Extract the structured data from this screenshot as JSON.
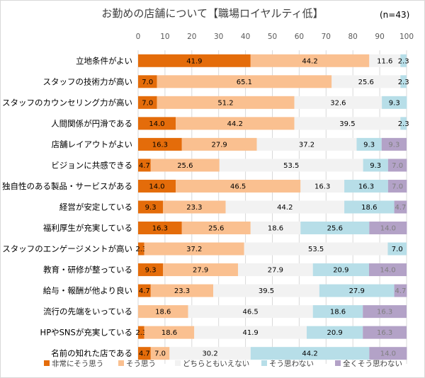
{
  "chart_data": {
    "type": "bar",
    "orientation": "horizontal",
    "stacked": true,
    "title": "お勤めの店舗について【職場ロイヤルティ低】",
    "note": "(n=43)",
    "xlim": [
      0,
      100
    ],
    "xticks": [
      0,
      10,
      20,
      30,
      40,
      50,
      60,
      70,
      80,
      90,
      100
    ],
    "grid": true,
    "legend_position": "bottom",
    "categories": [
      "立地条件がよい",
      "スタッフの技術力が高い",
      "スタッフのカウンセリング力が高い",
      "人間関係が円滑である",
      "店舗レイアウトがよい",
      "ビジョンに共感できる",
      "独自性のある製品・サービスがある",
      "経営が安定している",
      "福利厚生が充実している",
      "スタッフのエンゲージメントが高い",
      "教育・研修が整っている",
      "給与・報酬が他より良い",
      "流行の先端をいっている",
      "HPやSNSが充実している",
      "名前の知れた店である"
    ],
    "series": [
      {
        "name": "非常にそう思う",
        "color": "#e46c0a",
        "text_color": "#000000",
        "values": [
          41.9,
          7.0,
          7.0,
          14.0,
          16.3,
          4.7,
          14.0,
          9.3,
          16.3,
          2.3,
          9.3,
          4.7,
          0,
          2.3,
          4.7
        ]
      },
      {
        "name": "そう思う",
        "color": "#fac090",
        "text_color": "#000000",
        "values": [
          44.2,
          65.1,
          51.2,
          44.2,
          27.9,
          25.6,
          46.5,
          23.3,
          25.6,
          37.2,
          27.9,
          23.3,
          18.6,
          18.6,
          7.0
        ]
      },
      {
        "name": "どちらともいえない",
        "color": "#f2f2f2",
        "text_color": "#000000",
        "values": [
          11.6,
          25.6,
          32.6,
          39.5,
          37.2,
          53.5,
          16.3,
          44.2,
          18.6,
          53.5,
          27.9,
          39.5,
          46.5,
          41.9,
          30.2
        ]
      },
      {
        "name": "そう思わない",
        "color": "#b7dee8",
        "text_color": "#000000",
        "values": [
          2.3,
          2.3,
          9.3,
          2.3,
          9.3,
          9.3,
          16.3,
          18.6,
          25.6,
          7.0,
          20.9,
          27.9,
          18.6,
          20.9,
          44.2
        ]
      },
      {
        "name": "全くそう思わない",
        "color": "#b3a2c7",
        "text_color": "#7f7f7f",
        "values": [
          0,
          0,
          0,
          0,
          9.3,
          7.0,
          7.0,
          4.7,
          14.0,
          0,
          14.0,
          4.7,
          16.3,
          16.3,
          14.0
        ]
      }
    ]
  }
}
